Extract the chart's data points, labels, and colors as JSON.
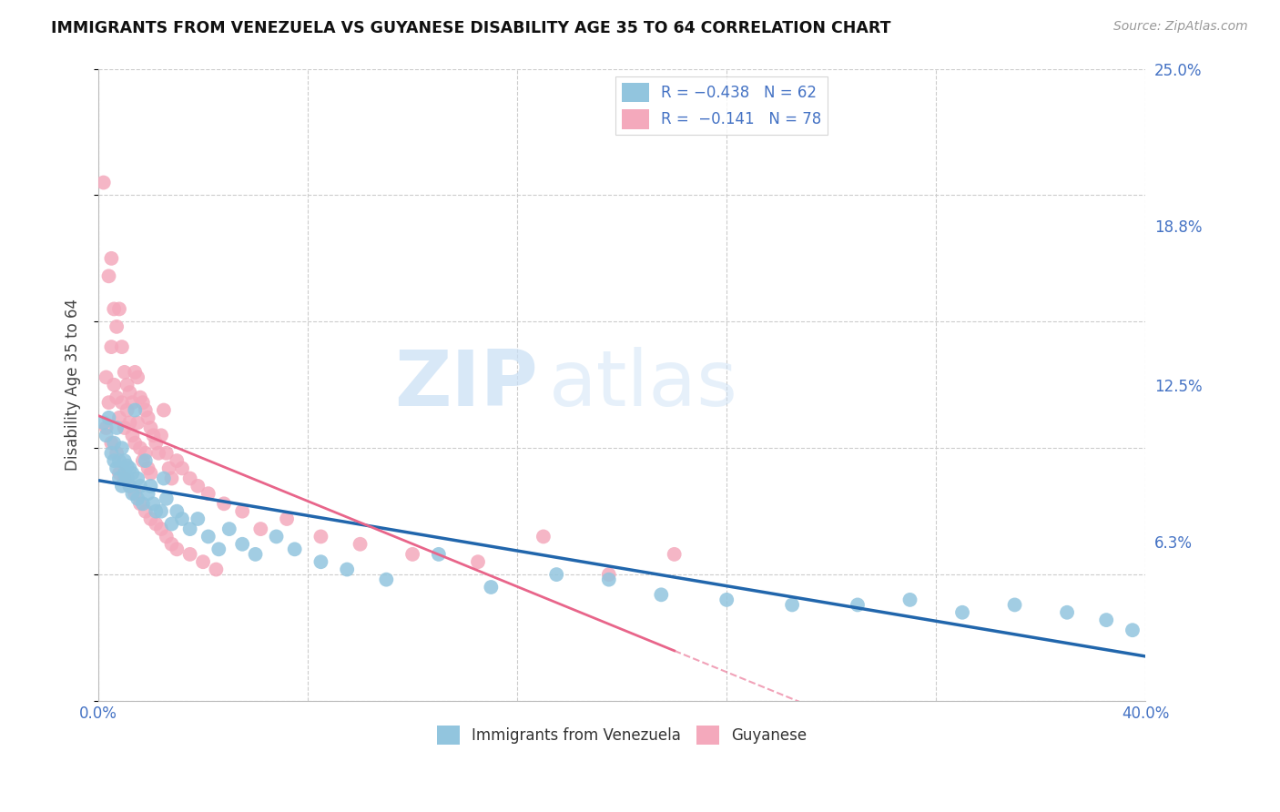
{
  "title": "IMMIGRANTS FROM VENEZUELA VS GUYANESE DISABILITY AGE 35 TO 64 CORRELATION CHART",
  "source": "Source: ZipAtlas.com",
  "ylabel": "Disability Age 35 to 64",
  "xlim": [
    0.0,
    0.4
  ],
  "ylim": [
    0.0,
    0.25
  ],
  "yticks_right": [
    0.25,
    0.188,
    0.125,
    0.063,
    0.0
  ],
  "ytick_labels_right": [
    "25.0%",
    "18.8%",
    "12.5%",
    "6.3%",
    ""
  ],
  "legend_label1": "Immigrants from Venezuela",
  "legend_label2": "Guyanese",
  "color_blue": "#92c5de",
  "color_pink": "#f4a9bc",
  "color_blue_line": "#2166ac",
  "color_pink_line": "#e8658a",
  "color_axis_blue": "#4472C4",
  "watermark_zip": "ZIP",
  "watermark_atlas": "atlas",
  "background_color": "#ffffff",
  "grid_color": "#cccccc",
  "venezuela_x": [
    0.002,
    0.003,
    0.004,
    0.005,
    0.006,
    0.006,
    0.007,
    0.007,
    0.008,
    0.008,
    0.009,
    0.009,
    0.01,
    0.01,
    0.011,
    0.011,
    0.012,
    0.012,
    0.013,
    0.013,
    0.014,
    0.015,
    0.015,
    0.016,
    0.017,
    0.018,
    0.019,
    0.02,
    0.021,
    0.022,
    0.024,
    0.025,
    0.026,
    0.028,
    0.03,
    0.032,
    0.035,
    0.038,
    0.042,
    0.046,
    0.05,
    0.055,
    0.06,
    0.068,
    0.075,
    0.085,
    0.095,
    0.11,
    0.13,
    0.15,
    0.175,
    0.195,
    0.215,
    0.24,
    0.265,
    0.29,
    0.31,
    0.33,
    0.35,
    0.37,
    0.385,
    0.395
  ],
  "venezuela_y": [
    0.11,
    0.105,
    0.112,
    0.098,
    0.095,
    0.102,
    0.092,
    0.108,
    0.088,
    0.095,
    0.085,
    0.1,
    0.09,
    0.095,
    0.088,
    0.093,
    0.085,
    0.092,
    0.082,
    0.09,
    0.115,
    0.08,
    0.088,
    0.085,
    0.078,
    0.095,
    0.082,
    0.085,
    0.078,
    0.075,
    0.075,
    0.088,
    0.08,
    0.07,
    0.075,
    0.072,
    0.068,
    0.072,
    0.065,
    0.06,
    0.068,
    0.062,
    0.058,
    0.065,
    0.06,
    0.055,
    0.052,
    0.048,
    0.058,
    0.045,
    0.05,
    0.048,
    0.042,
    0.04,
    0.038,
    0.038,
    0.04,
    0.035,
    0.038,
    0.035,
    0.032,
    0.028
  ],
  "guyanese_x": [
    0.002,
    0.003,
    0.004,
    0.004,
    0.005,
    0.005,
    0.006,
    0.006,
    0.007,
    0.007,
    0.008,
    0.008,
    0.009,
    0.009,
    0.01,
    0.01,
    0.011,
    0.011,
    0.012,
    0.012,
    0.013,
    0.013,
    0.014,
    0.014,
    0.015,
    0.015,
    0.016,
    0.016,
    0.017,
    0.017,
    0.018,
    0.018,
    0.019,
    0.019,
    0.02,
    0.02,
    0.021,
    0.022,
    0.023,
    0.024,
    0.025,
    0.026,
    0.027,
    0.028,
    0.03,
    0.032,
    0.035,
    0.038,
    0.042,
    0.048,
    0.055,
    0.062,
    0.072,
    0.085,
    0.1,
    0.12,
    0.145,
    0.17,
    0.195,
    0.22,
    0.003,
    0.005,
    0.007,
    0.008,
    0.01,
    0.012,
    0.014,
    0.016,
    0.018,
    0.02,
    0.022,
    0.024,
    0.026,
    0.028,
    0.03,
    0.035,
    0.04,
    0.045
  ],
  "guyanese_y": [
    0.205,
    0.128,
    0.168,
    0.118,
    0.175,
    0.14,
    0.155,
    0.125,
    0.148,
    0.12,
    0.155,
    0.112,
    0.14,
    0.118,
    0.13,
    0.108,
    0.125,
    0.115,
    0.122,
    0.11,
    0.118,
    0.105,
    0.13,
    0.102,
    0.128,
    0.11,
    0.12,
    0.1,
    0.118,
    0.095,
    0.115,
    0.098,
    0.112,
    0.092,
    0.108,
    0.09,
    0.105,
    0.102,
    0.098,
    0.105,
    0.115,
    0.098,
    0.092,
    0.088,
    0.095,
    0.092,
    0.088,
    0.085,
    0.082,
    0.078,
    0.075,
    0.068,
    0.072,
    0.065,
    0.062,
    0.058,
    0.055,
    0.065,
    0.05,
    0.058,
    0.108,
    0.102,
    0.098,
    0.09,
    0.088,
    0.085,
    0.082,
    0.078,
    0.075,
    0.072,
    0.07,
    0.068,
    0.065,
    0.062,
    0.06,
    0.058,
    0.055,
    0.052
  ]
}
